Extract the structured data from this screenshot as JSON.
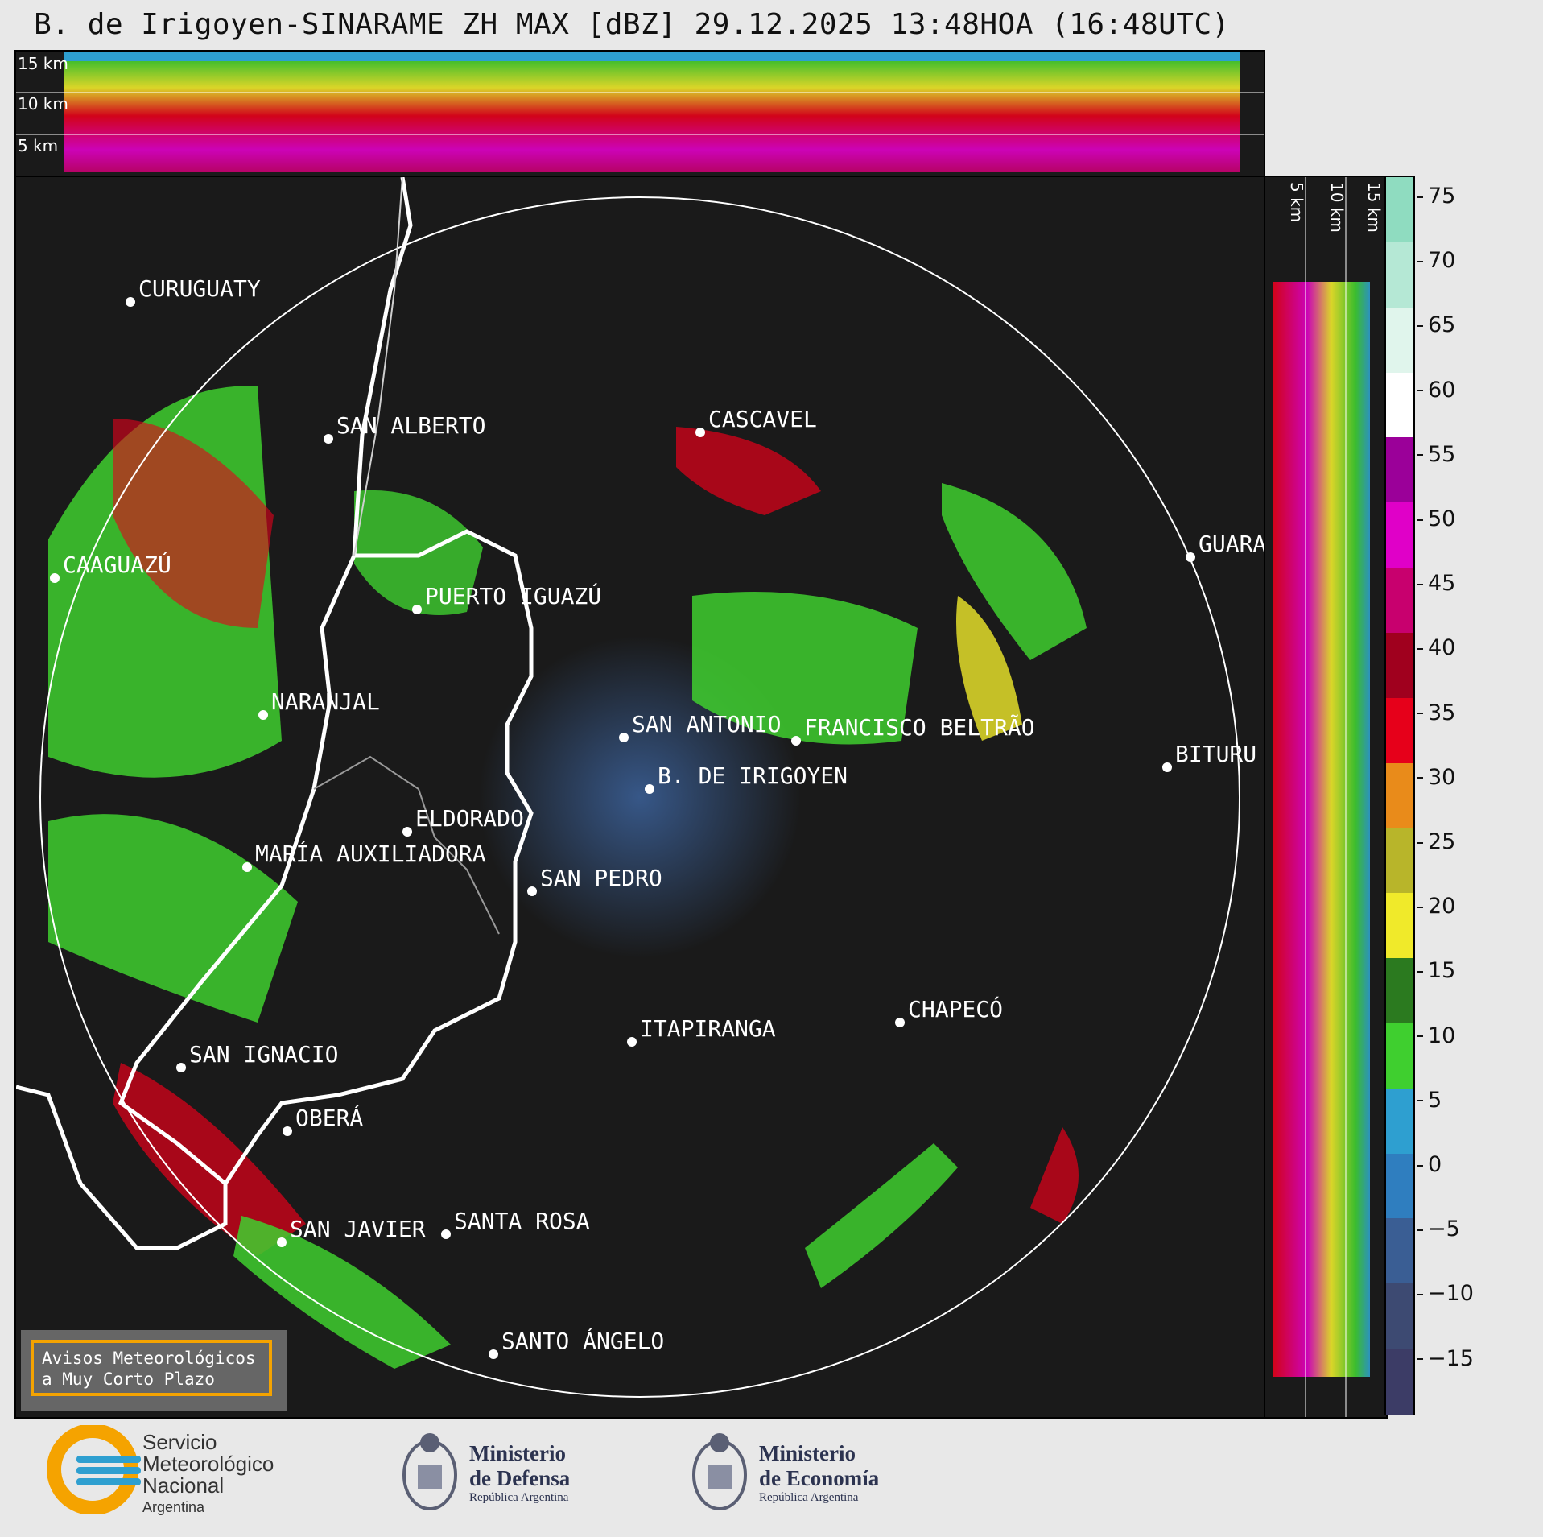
{
  "title": "B. de Irigoyen-SINARAME ZH MAX [dBZ] 29.12.2025 13:48HOA (16:48UTC)",
  "top_panel": {
    "height_labels": [
      "15 km",
      "10 km",
      "5 km"
    ]
  },
  "side_panel": {
    "height_labels": [
      "5 km",
      "10 km",
      "15 km"
    ]
  },
  "colorbar": {
    "ticks": [
      "75",
      "70",
      "65",
      "60",
      "55",
      "50",
      "45",
      "40",
      "35",
      "30",
      "25",
      "20",
      "15",
      "10",
      "5",
      "0",
      "−5",
      "−10",
      "−15"
    ],
    "colors": [
      "#8fdcc0",
      "#b5e8d5",
      "#e0f5ec",
      "#ffffff",
      "#9b0099",
      "#e000c8",
      "#c8006e",
      "#a0001e",
      "#e6001a",
      "#e98b1a",
      "#b8b52a",
      "#f0ea2a",
      "#2b7a1f",
      "#3fcf2f",
      "#2e9fd0",
      "#2f7ebf",
      "#3a5e94",
      "#3d4a72",
      "#3c3c66"
    ]
  },
  "cities": [
    {
      "name": "CURUGUATY"
    },
    {
      "name": "SAN ALBERTO"
    },
    {
      "name": "CASCAVEL"
    },
    {
      "name": "CAAGUAZÚ"
    },
    {
      "name": "GUARA"
    },
    {
      "name": "PUERTO IGUAZÚ"
    },
    {
      "name": "NARANJAL"
    },
    {
      "name": "SAN ANTONIO"
    },
    {
      "name": "FRANCISCO BELTRÃO"
    },
    {
      "name": "BITURU"
    },
    {
      "name": "B. DE IRIGOYEN"
    },
    {
      "name": "ELDORADO"
    },
    {
      "name": "MARÍA AUXILIADORA"
    },
    {
      "name": "SAN PEDRO"
    },
    {
      "name": "CHAPECÓ"
    },
    {
      "name": "ITAPIRANGA"
    },
    {
      "name": "SAN IGNACIO"
    },
    {
      "name": "OBERÁ"
    },
    {
      "name": "SAN JAVIER"
    },
    {
      "name": "SANTA ROSA"
    },
    {
      "name": "SANTO ÁNGELO"
    }
  ],
  "warning_box": {
    "line1": "Avisos Meteorológicos",
    "line2": "a Muy Corto Plazo"
  },
  "logos": {
    "smn": {
      "line1": "Servicio",
      "line2": "Meteorológico",
      "line3": "Nacional",
      "line4": "Argentina"
    },
    "defensa": {
      "line1": "Ministerio",
      "line2": "de Defensa",
      "line3": "República Argentina"
    },
    "economia": {
      "line1": "Ministerio",
      "line2": "de Economía",
      "line3": "República Argentina"
    }
  }
}
